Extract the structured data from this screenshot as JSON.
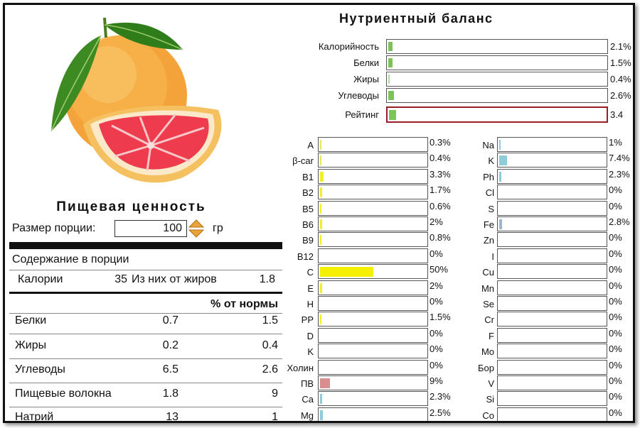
{
  "nutrition": {
    "title": "Пищевая ценность",
    "portion_label": "Размер порции:",
    "portion_value": "100",
    "portion_unit": "гр",
    "content_header": "Содержание в порции",
    "calories_label": "Калории",
    "calories_value": "35",
    "fat_cal_label": "Из них от жиров",
    "fat_cal_value": "1.8",
    "pct_header": "% от нормы",
    "rows": [
      {
        "name": "Белки",
        "amount": "0.7",
        "pct": "1.5"
      },
      {
        "name": "Жиры",
        "amount": "0.2",
        "pct": "0.4"
      },
      {
        "name": "Углеводы",
        "amount": "6.5",
        "pct": "2.6"
      },
      {
        "name": "Пищевые волокна",
        "amount": "1.8",
        "pct": "9"
      },
      {
        "name": "Натрий",
        "amount": "13",
        "pct": "1"
      }
    ]
  },
  "balance": {
    "title": "Нутриентный баланс",
    "rows": [
      {
        "label": "Калорийность",
        "pct": "2.1%",
        "fraction": 0.021
      },
      {
        "label": "Белки",
        "pct": "1.5%",
        "fraction": 0.015
      },
      {
        "label": "Жиры",
        "pct": "0.4%",
        "fraction": 0.004
      },
      {
        "label": "Углеводы",
        "pct": "2.6%",
        "fraction": 0.026
      },
      {
        "label": "Рейтинг",
        "pct": "3.4",
        "fraction": 0.034
      }
    ]
  },
  "vitamins": [
    {
      "label": "A",
      "pct": "0.3%",
      "fraction": 0.003,
      "color": "#e6e85a"
    },
    {
      "label": "β-car",
      "pct": "0.4%",
      "fraction": 0.004,
      "color": "#e6e85a"
    },
    {
      "label": "B1",
      "pct": "3.3%",
      "fraction": 0.033,
      "color": "#f2ef2a"
    },
    {
      "label": "B2",
      "pct": "1.7%",
      "fraction": 0.017,
      "color": "#f2ef2a"
    },
    {
      "label": "B5",
      "pct": "0.6%",
      "fraction": 0.006,
      "color": "#f2ef2a"
    },
    {
      "label": "B6",
      "pct": "2%",
      "fraction": 0.02,
      "color": "#f2ef2a"
    },
    {
      "label": "B9",
      "pct": "0.8%",
      "fraction": 0.008,
      "color": "#f2ef2a"
    },
    {
      "label": "B12",
      "pct": "0%",
      "fraction": 0,
      "color": "#f2ef2a"
    },
    {
      "label": "C",
      "pct": "50%",
      "fraction": 0.5,
      "color": "#f5f000"
    },
    {
      "label": "E",
      "pct": "2%",
      "fraction": 0.02,
      "color": "#f2ef2a"
    },
    {
      "label": "H",
      "pct": "0%",
      "fraction": 0,
      "color": "#f2ef2a"
    },
    {
      "label": "PP",
      "pct": "1.5%",
      "fraction": 0.015,
      "color": "#f2ef2a"
    },
    {
      "label": "D",
      "pct": "0%",
      "fraction": 0,
      "color": "#f2ef2a"
    },
    {
      "label": "K",
      "pct": "0%",
      "fraction": 0,
      "color": "#f2ef2a"
    },
    {
      "label": "Холин",
      "pct": "0%",
      "fraction": 0,
      "color": "#f2ef2a"
    },
    {
      "label": "ПВ",
      "pct": "9%",
      "fraction": 0.09,
      "color": "#d98e8e"
    },
    {
      "label": "Ca",
      "pct": "2.3%",
      "fraction": 0.023,
      "color": "#8fcbd8"
    },
    {
      "label": "Mg",
      "pct": "2.5%",
      "fraction": 0.025,
      "color": "#8fcbd8"
    }
  ],
  "minerals": [
    {
      "label": "Na",
      "pct": "1%",
      "fraction": 0.01,
      "color": "#8fcbd8"
    },
    {
      "label": "K",
      "pct": "7.4%",
      "fraction": 0.074,
      "color": "#8fcbd8"
    },
    {
      "label": "Ph",
      "pct": "2.3%",
      "fraction": 0.023,
      "color": "#8fcbd8"
    },
    {
      "label": "Cl",
      "pct": "0%",
      "fraction": 0,
      "color": "#8fcbd8"
    },
    {
      "label": "S",
      "pct": "0%",
      "fraction": 0,
      "color": "#8fcbd8"
    },
    {
      "label": "Fe",
      "pct": "2.8%",
      "fraction": 0.028,
      "color": "#9fb4cf"
    },
    {
      "label": "Zn",
      "pct": "0%",
      "fraction": 0,
      "color": "#9fb4cf"
    },
    {
      "label": "I",
      "pct": "0%",
      "fraction": 0,
      "color": "#9fb4cf"
    },
    {
      "label": "Cu",
      "pct": "0%",
      "fraction": 0,
      "color": "#9fb4cf"
    },
    {
      "label": "Mn",
      "pct": "0%",
      "fraction": 0,
      "color": "#9fb4cf"
    },
    {
      "label": "Se",
      "pct": "0%",
      "fraction": 0,
      "color": "#9fb4cf"
    },
    {
      "label": "Cr",
      "pct": "0%",
      "fraction": 0,
      "color": "#9fb4cf"
    },
    {
      "label": "F",
      "pct": "0%",
      "fraction": 0,
      "color": "#9fb4cf"
    },
    {
      "label": "Mo",
      "pct": "0%",
      "fraction": 0,
      "color": "#9fb4cf"
    },
    {
      "label": "Бор",
      "pct": "0%",
      "fraction": 0,
      "color": "#9fb4cf"
    },
    {
      "label": "V",
      "pct": "0%",
      "fraction": 0,
      "color": "#9fb4cf"
    },
    {
      "label": "Si",
      "pct": "0%",
      "fraction": 0,
      "color": "#9fb4cf"
    },
    {
      "label": "Co",
      "pct": "0%",
      "fraction": 0,
      "color": "#9fb4cf"
    }
  ]
}
